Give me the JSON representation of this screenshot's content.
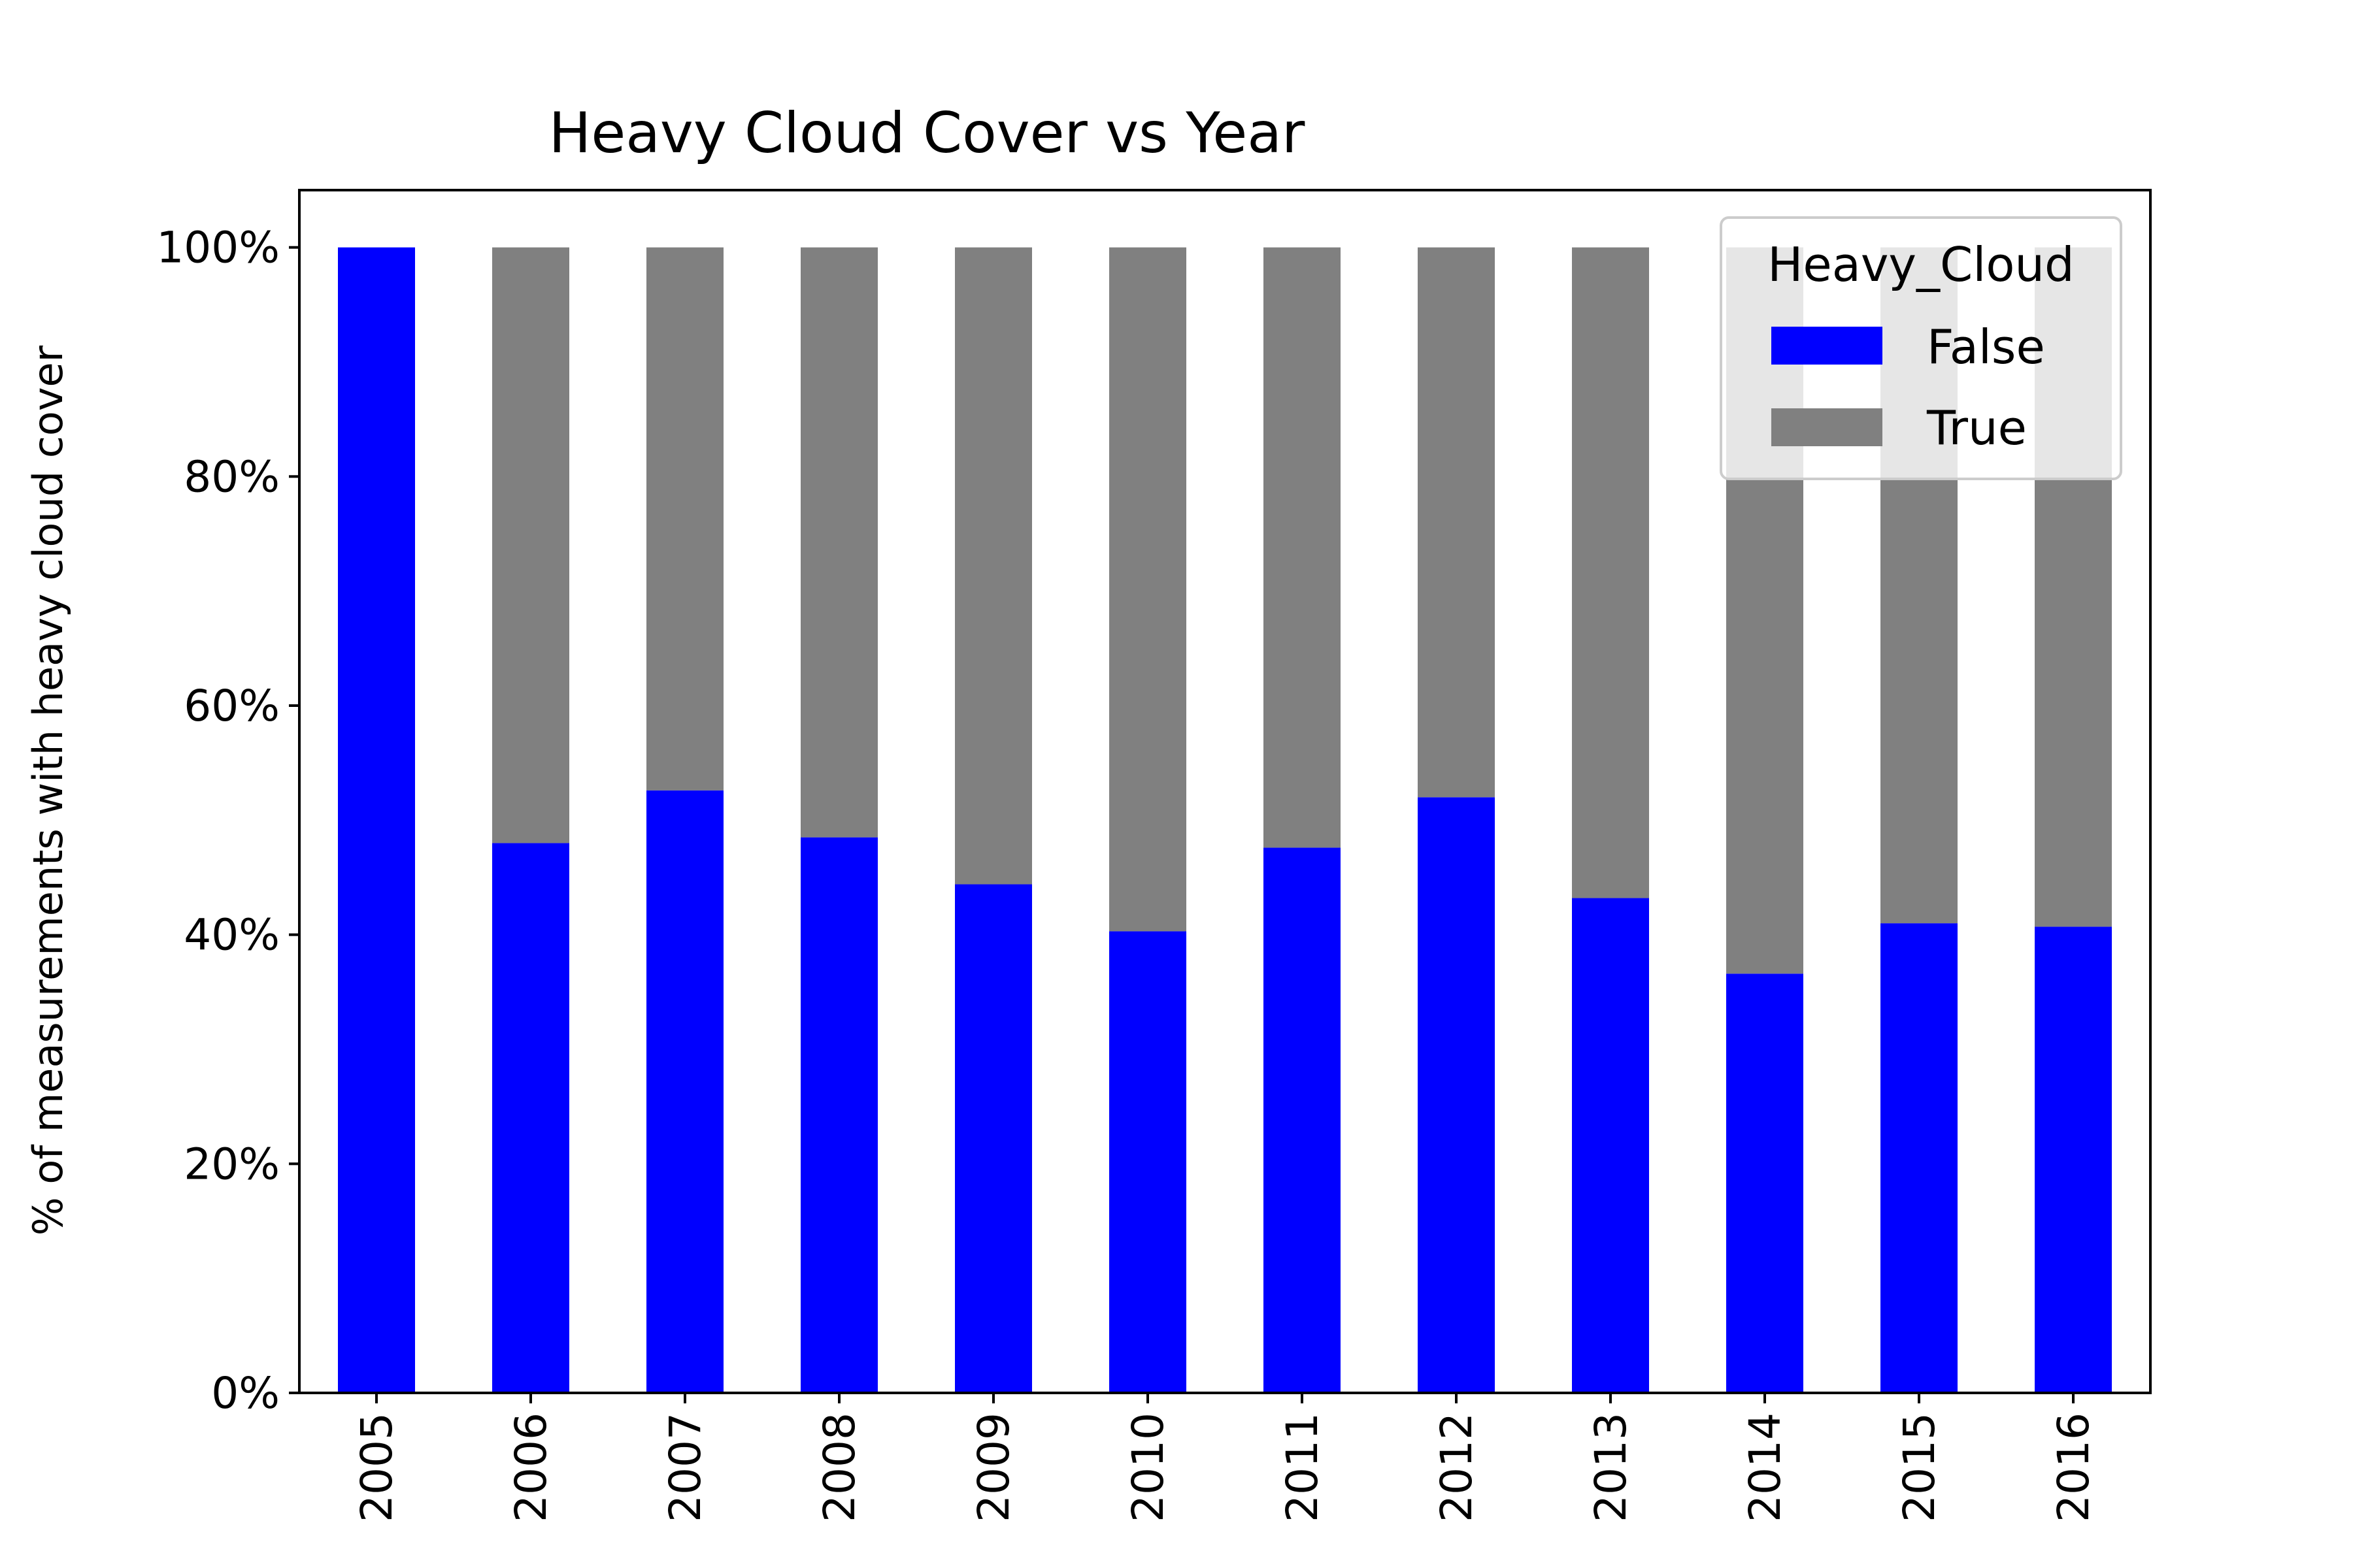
{
  "chart_data": {
    "type": "bar",
    "stacked": true,
    "title": "Heavy Cloud Cover vs Year",
    "xlabel": "",
    "ylabel": "% of measurements with heavy cloud cover",
    "ylim": [
      0,
      105
    ],
    "yticks": [
      0,
      20,
      40,
      60,
      80,
      100
    ],
    "ytick_labels": [
      "0%",
      "20%",
      "40%",
      "60%",
      "80%",
      "100%"
    ],
    "categories": [
      "2005",
      "2006",
      "2007",
      "2008",
      "2009",
      "2010",
      "2011",
      "2012",
      "2013",
      "2014",
      "2015",
      "2016"
    ],
    "series": [
      {
        "name": "False",
        "color": "#0000ff",
        "values": [
          100,
          48.0,
          52.6,
          48.5,
          44.4,
          40.3,
          47.6,
          52.0,
          43.2,
          36.6,
          41.0,
          40.7
        ]
      },
      {
        "name": "True",
        "color": "#808080",
        "values": [
          0,
          52.0,
          47.4,
          51.5,
          55.6,
          59.7,
          52.4,
          48.0,
          56.8,
          63.4,
          59.0,
          59.3
        ]
      }
    ],
    "legend": {
      "title": "Heavy_Cloud",
      "placement": "top-right"
    },
    "grid": false
  }
}
